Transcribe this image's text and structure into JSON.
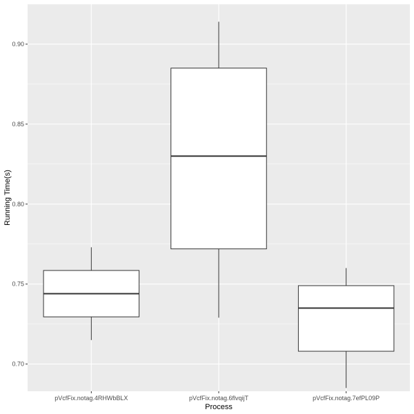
{
  "chart_data": {
    "type": "boxplot",
    "title": "",
    "xlabel": "Process",
    "ylabel": "Running Time(s)",
    "ylim": [
      0.683,
      0.925
    ],
    "yticks": [
      0.7,
      0.75,
      0.8,
      0.85,
      0.9
    ],
    "ytick_labels": [
      "0.70",
      "0.75",
      "0.80",
      "0.85",
      "0.90"
    ],
    "grid": true,
    "categories": [
      "pVcfFix.notag.4RHWbBLX",
      "pVcfFix.notag.6flvqijT",
      "pVcfFix.notag.7efPL09P"
    ],
    "boxes": [
      {
        "category": "pVcfFix.notag.4RHWbBLX",
        "min": 0.715,
        "q1": 0.7295,
        "median": 0.744,
        "q3": 0.7585,
        "max": 0.773
      },
      {
        "category": "pVcfFix.notag.6flvqijT",
        "min": 0.729,
        "q1": 0.772,
        "median": 0.83,
        "q3": 0.885,
        "max": 0.914
      },
      {
        "category": "pVcfFix.notag.7efPL09P",
        "min": 0.685,
        "q1": 0.708,
        "median": 0.735,
        "q3": 0.749,
        "max": 0.76
      }
    ],
    "colors": {
      "panel": "#ebebeb",
      "grid_major": "#ffffff",
      "box_fill": "#ffffff",
      "box_line": "#333333",
      "tick_text": "#4d4d4d"
    }
  }
}
